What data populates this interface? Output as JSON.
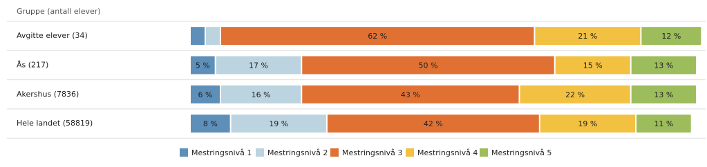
{
  "chart_data": {
    "type": "stacked-bar",
    "orientation": "horizontal",
    "header": "Gruppe (antall elever)",
    "categories": [
      "Avgitte elever (34)",
      "Ås (217)",
      "Akershus (7836)",
      "Hele landet (58819)"
    ],
    "xlim": [
      0,
      100
    ],
    "series": [
      {
        "name": "Mestringsnivå 1",
        "color": "#5d8fb9",
        "values": [
          3,
          5,
          6,
          8
        ],
        "value_labels": [
          null,
          "5 %",
          "6 %",
          "8 %"
        ]
      },
      {
        "name": "Mestringsnivå 2",
        "color": "#bbd4e0",
        "values": [
          3,
          17,
          16,
          19
        ],
        "value_labels": [
          null,
          "17 %",
          "16 %",
          "19 %"
        ]
      },
      {
        "name": "Mestringsnivå 3",
        "color": "#e07133",
        "values": [
          62,
          50,
          43,
          42
        ],
        "value_labels": [
          "62 %",
          "50 %",
          "43 %",
          "42 %"
        ]
      },
      {
        "name": "Mestringsnivå 4",
        "color": "#f3c142",
        "values": [
          21,
          15,
          22,
          19
        ],
        "value_labels": [
          "21 %",
          "15 %",
          "22 %",
          "19 %"
        ]
      },
      {
        "name": "Mestringsnivå 5",
        "color": "#9dbc5b",
        "values": [
          12,
          13,
          13,
          11
        ],
        "value_labels": [
          "12 %",
          "13 %",
          "13 %",
          "11 %"
        ]
      }
    ]
  }
}
